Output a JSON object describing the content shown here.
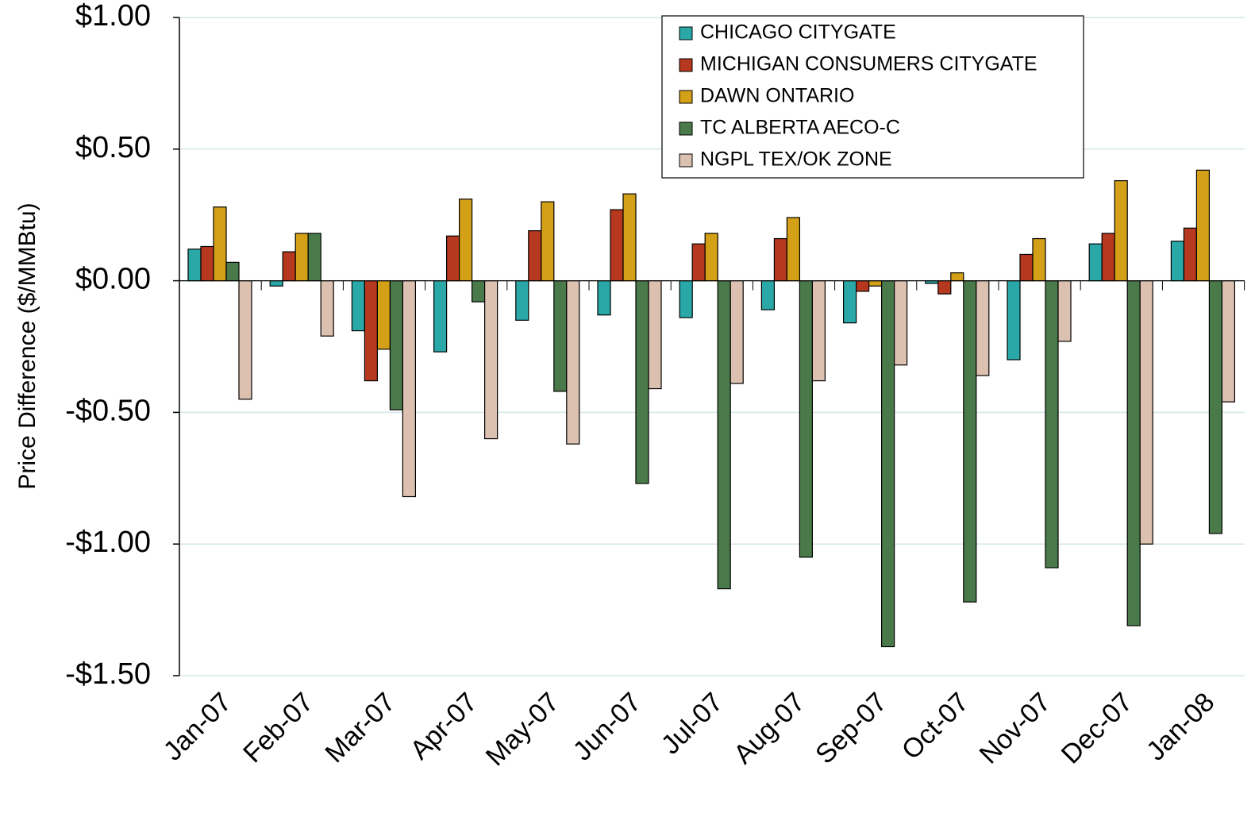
{
  "chart_data": {
    "type": "bar",
    "y_label": "Price Difference  ($/MMBtu)",
    "categories": [
      "Jan-07",
      "Feb-07",
      "Mar-07",
      "Apr-07",
      "May-07",
      "Jun-07",
      "Jul-07",
      "Aug-07",
      "Sep-07",
      "Oct-07",
      "Nov-07",
      "Dec-07",
      "Jan-08"
    ],
    "series": [
      {
        "name": "CHICAGO CITYGATE",
        "color": "#2aa8a8",
        "values": [
          0.12,
          -0.02,
          -0.19,
          -0.27,
          -0.15,
          -0.13,
          -0.14,
          -0.11,
          -0.16,
          -0.01,
          -0.3,
          0.14,
          0.15
        ]
      },
      {
        "name": "MICHIGAN CONSUMERS CITYGATE",
        "color": "#b5381f",
        "values": [
          0.13,
          0.11,
          -0.38,
          0.17,
          0.19,
          0.27,
          0.14,
          0.16,
          -0.04,
          -0.05,
          0.1,
          0.18,
          0.2
        ]
      },
      {
        "name": "DAWN ONTARIO",
        "color": "#d4a017",
        "values": [
          0.28,
          0.18,
          -0.26,
          0.31,
          0.3,
          0.33,
          0.18,
          0.24,
          -0.02,
          0.03,
          0.16,
          0.38,
          0.42
        ]
      },
      {
        "name": "TC ALBERTA AECO-C",
        "color": "#4a7a4a",
        "values": [
          0.07,
          0.18,
          -0.49,
          -0.08,
          -0.42,
          -0.77,
          -1.17,
          -1.05,
          -1.39,
          -1.22,
          -1.09,
          -1.31,
          -0.96
        ]
      },
      {
        "name": "NGPL TEX/OK ZONE",
        "color": "#dcc0b0",
        "values": [
          -0.45,
          -0.21,
          -0.82,
          -0.6,
          -0.62,
          -0.41,
          -0.39,
          -0.38,
          -0.32,
          -0.36,
          -0.23,
          -1.0,
          -0.46
        ]
      }
    ],
    "ylim": [
      -1.5,
      1.0
    ],
    "yticks": [
      {
        "value": -1.5,
        "label": "-$1.50"
      },
      {
        "value": -1.0,
        "label": "-$1.00"
      },
      {
        "value": -0.5,
        "label": "-$0.50"
      },
      {
        "value": 0,
        "label": "$0.00"
      },
      {
        "value": 0.5,
        "label": "$0.50"
      },
      {
        "value": 1.0,
        "label": "$1.00"
      }
    ],
    "grid": true,
    "legend": "top-right"
  }
}
